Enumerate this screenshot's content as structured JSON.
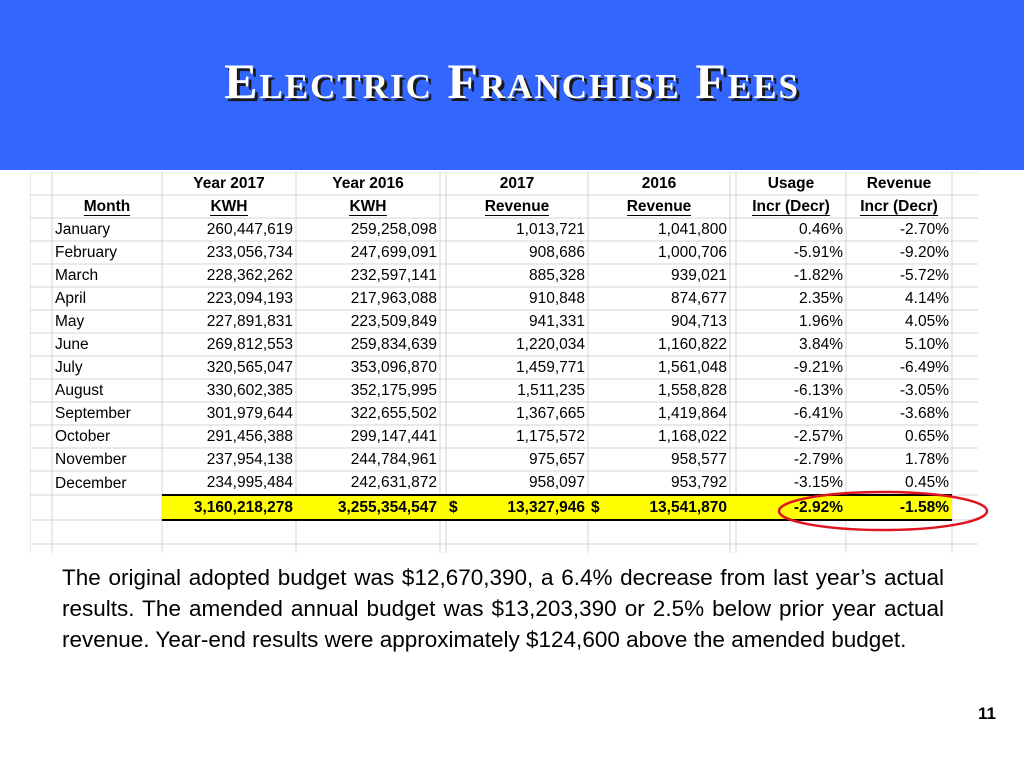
{
  "slide": {
    "title": "Electric Franchise Fees",
    "page_number": "11",
    "colors": {
      "header_bg": "#3366ff",
      "total_row_bg": "#ffff00",
      "ellipse": "#e0141e"
    }
  },
  "table": {
    "header_top": [
      "",
      "Year 2017",
      "Year 2016",
      "2017",
      "2016",
      "Usage",
      "Revenue"
    ],
    "header_bottom": [
      "Month",
      "KWH",
      "KWH",
      "Revenue",
      "Revenue",
      "Incr (Decr)",
      "Incr (Decr)"
    ],
    "rows": [
      [
        "January",
        "260,447,619",
        "259,258,098",
        "1,013,721",
        "1,041,800",
        "0.46%",
        "-2.70%"
      ],
      [
        "February",
        "233,056,734",
        "247,699,091",
        "908,686",
        "1,000,706",
        "-5.91%",
        "-9.20%"
      ],
      [
        "March",
        "228,362,262",
        "232,597,141",
        "885,328",
        "939,021",
        "-1.82%",
        "-5.72%"
      ],
      [
        "April",
        "223,094,193",
        "217,963,088",
        "910,848",
        "874,677",
        "2.35%",
        "4.14%"
      ],
      [
        "May",
        "227,891,831",
        "223,509,849",
        "941,331",
        "904,713",
        "1.96%",
        "4.05%"
      ],
      [
        "June",
        "269,812,553",
        "259,834,639",
        "1,220,034",
        "1,160,822",
        "3.84%",
        "5.10%"
      ],
      [
        "July",
        "320,565,047",
        "353,096,870",
        "1,459,771",
        "1,561,048",
        "-9.21%",
        "-6.49%"
      ],
      [
        "August",
        "330,602,385",
        "352,175,995",
        "1,511,235",
        "1,558,828",
        "-6.13%",
        "-3.05%"
      ],
      [
        "September",
        "301,979,644",
        "322,655,502",
        "1,367,665",
        "1,419,864",
        "-6.41%",
        "-3.68%"
      ],
      [
        "October",
        "291,456,388",
        "299,147,441",
        "1,175,572",
        "1,168,022",
        "-2.57%",
        "0.65%"
      ],
      [
        "November",
        "237,954,138",
        "244,784,961",
        "975,657",
        "958,577",
        "-2.79%",
        "1.78%"
      ],
      [
        "December",
        "234,995,484",
        "242,631,872",
        "958,097",
        "953,792",
        "-3.15%",
        "0.45%"
      ]
    ],
    "total": {
      "kwh_2017": "3,160,218,278",
      "kwh_2016": "3,255,354,547",
      "currency_symbol": "$",
      "revenue_2017": "13,327,946",
      "revenue_2016": "13,541,870",
      "usage_change": "-2.92%",
      "revenue_change": "-1.58%"
    }
  },
  "summary_text": "The original adopted budget was $12,670,390, a 6.4% decrease from last year’s actual results.  The amended annual budget was $13,203,390 or 2.5% below prior year actual revenue.   Year-end results were approximately $124,600 above the amended budget."
}
